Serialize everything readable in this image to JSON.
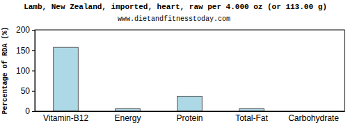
{
  "chart_data": {
    "type": "bar",
    "title": "Lamb, New Zealand, imported, heart, raw per 4.000 oz (or 113.00 g)",
    "subtitle": "www.dietandfitnesstoday.com",
    "y_label": "Percentage of RDA (%)",
    "categories": [
      "Vitamin-B12",
      "Energy",
      "Protein",
      "Total-Fat",
      "Carbohydrate"
    ],
    "values": [
      157,
      6,
      37,
      6,
      0
    ],
    "color": "#add8e6",
    "ylim": [
      0,
      200
    ],
    "yticks": [
      0,
      50,
      100,
      150,
      200
    ],
    "grid": false
  }
}
